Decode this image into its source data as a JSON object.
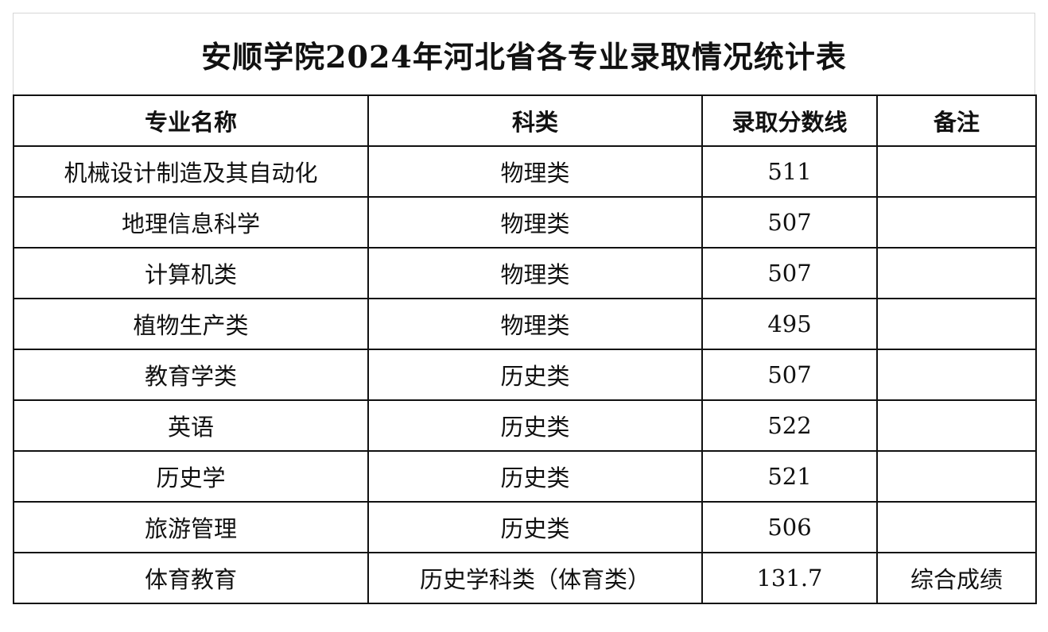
{
  "title": "安顺学院2024年河北省各专业录取情况统计表",
  "columns": [
    "专业名称",
    "科类",
    "录取分数线",
    "备注"
  ],
  "rows": [
    {
      "major": "机械设计制造及其自动化",
      "category": "物理类",
      "score": "511",
      "note": ""
    },
    {
      "major": "地理信息科学",
      "category": "物理类",
      "score": "507",
      "note": ""
    },
    {
      "major": "计算机类",
      "category": "物理类",
      "score": "507",
      "note": ""
    },
    {
      "major": "植物生产类",
      "category": "物理类",
      "score": "495",
      "note": ""
    },
    {
      "major": "教育学类",
      "category": "历史类",
      "score": "507",
      "note": ""
    },
    {
      "major": "英语",
      "category": "历史类",
      "score": "522",
      "note": ""
    },
    {
      "major": "历史学",
      "category": "历史类",
      "score": "521",
      "note": ""
    },
    {
      "major": "旅游管理",
      "category": "历史类",
      "score": "506",
      "note": ""
    },
    {
      "major": "体育教育",
      "category": "历史学科类（体育类）",
      "score": "131.7",
      "note": "综合成绩"
    }
  ]
}
